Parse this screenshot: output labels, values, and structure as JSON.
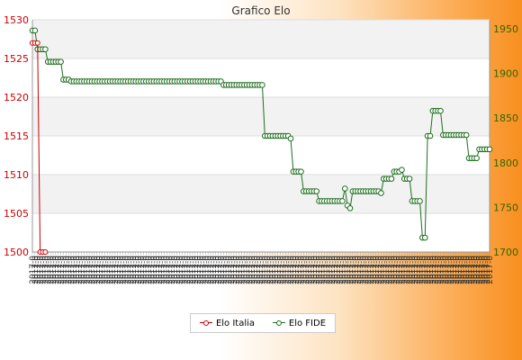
{
  "chart_data": {
    "type": "line",
    "title": "Grafico Elo",
    "left_axis": {
      "ticks": [
        1500,
        1505,
        1510,
        1515,
        1520,
        1525,
        1530
      ],
      "range": [
        1500,
        1530
      ],
      "color": "#cc0000"
    },
    "right_axis": {
      "ticks": [
        1700,
        1750,
        1800,
        1850,
        1900,
        1950
      ],
      "range": [
        1700,
        1960
      ],
      "color": "#336600"
    },
    "x_tick_label": "2017-0",
    "legend_position": "bottom-center",
    "grid": true,
    "series": [
      {
        "name": "Elo Italia",
        "axis": "left",
        "color": "#cc0000",
        "values": [
          1527,
          1527,
          1527,
          1500,
          1500,
          1500
        ]
      },
      {
        "name": "Elo FIDE",
        "axis": "right",
        "color": "#1f6e1f",
        "values": [
          1948,
          1948,
          1927,
          1927,
          1927,
          1927,
          1913,
          1913,
          1913,
          1913,
          1913,
          1913,
          1893,
          1893,
          1893,
          1891,
          1891,
          1891,
          1891,
          1891,
          1891,
          1891,
          1891,
          1891,
          1891,
          1891,
          1891,
          1891,
          1891,
          1891,
          1891,
          1891,
          1891,
          1891,
          1891,
          1891,
          1891,
          1891,
          1891,
          1891,
          1891,
          1891,
          1891,
          1891,
          1891,
          1891,
          1891,
          1891,
          1891,
          1891,
          1891,
          1891,
          1891,
          1891,
          1891,
          1891,
          1891,
          1891,
          1891,
          1891,
          1891,
          1891,
          1891,
          1891,
          1891,
          1891,
          1891,
          1891,
          1891,
          1891,
          1891,
          1891,
          1891,
          1891,
          1887,
          1887,
          1887,
          1887,
          1887,
          1887,
          1887,
          1887,
          1887,
          1887,
          1887,
          1887,
          1887,
          1887,
          1887,
          1887,
          1830,
          1830,
          1830,
          1830,
          1830,
          1830,
          1830,
          1830,
          1830,
          1830,
          1827,
          1790,
          1790,
          1790,
          1790,
          1768,
          1768,
          1768,
          1768,
          1768,
          1768,
          1757,
          1757,
          1757,
          1757,
          1757,
          1757,
          1757,
          1757,
          1757,
          1757,
          1771,
          1752,
          1749,
          1768,
          1768,
          1768,
          1768,
          1768,
          1768,
          1768,
          1768,
          1768,
          1768,
          1768,
          1766,
          1782,
          1782,
          1782,
          1782,
          1790,
          1790,
          1790,
          1792,
          1782,
          1782,
          1782,
          1757,
          1757,
          1757,
          1757,
          1716,
          1716,
          1830,
          1830,
          1858,
          1858,
          1858,
          1858,
          1831,
          1831,
          1831,
          1831,
          1831,
          1831,
          1831,
          1831,
          1831,
          1831,
          1805,
          1805,
          1805,
          1805,
          1815,
          1815,
          1815,
          1815,
          1815
        ]
      }
    ]
  }
}
